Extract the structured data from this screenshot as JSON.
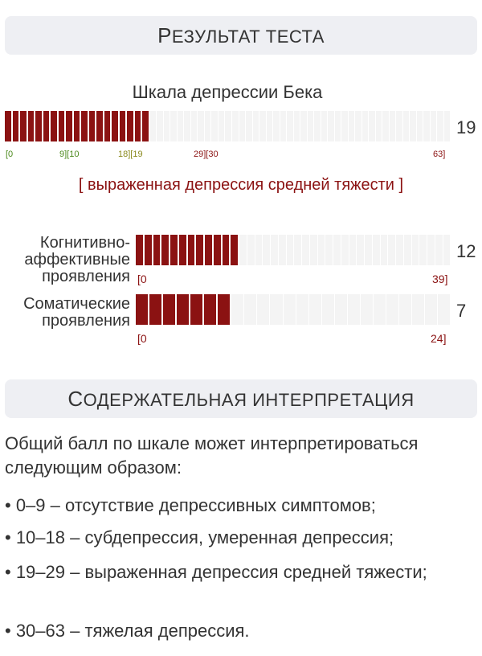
{
  "result_header": {
    "cap": "Р",
    "rest": "ЕЗУЛЬТАТ ТЕСТА"
  },
  "scale": {
    "title": "Шкала депрессии Бека",
    "score": "19",
    "value": 19,
    "max": 63,
    "ranges": [
      {
        "label": "[0",
        "color": "#4d8a1e"
      },
      {
        "label": "9][10",
        "color": "#4d8a1e"
      },
      {
        "label": "18][19",
        "color": "#8a8a1e"
      },
      {
        "label": "29][30",
        "color": "#8b1212"
      },
      {
        "label": "63]",
        "color": "#8b1212"
      }
    ],
    "result": "[ выраженная депрессия средней тяжести ]"
  },
  "subscales": [
    {
      "label_lines": [
        "Когнитивно-",
        "аффективные",
        "проявления"
      ],
      "score": "12",
      "value": 12,
      "max": 39,
      "min_label": "[0",
      "max_label": "39]"
    },
    {
      "label_lines": [
        "Соматические",
        "проявления"
      ],
      "score": "7",
      "value": 7,
      "max": 24,
      "min_label": "[0",
      "max_label": "24]"
    }
  ],
  "interp_header": {
    "cap": "С",
    "rest": "ОДЕРЖАТЕЛЬНАЯ ИНТЕРПРЕТАЦИЯ"
  },
  "interpretation": {
    "intro": "Общий балл по шкале может интерпретироваться следующим образом:",
    "items": [
      "• 0–9 – отсутствие депрессивных симптомов;",
      "• 10–18 – субдепрессия, умеренная депрессия;",
      "• 19–29 – выраженная депрессия средней тяжести;",
      "• 30–63 – тяжелая депрессия."
    ]
  },
  "colors": {
    "accent": "#8b1212",
    "track": "#f4f4f4",
    "header_bg": "#eeeff3"
  }
}
